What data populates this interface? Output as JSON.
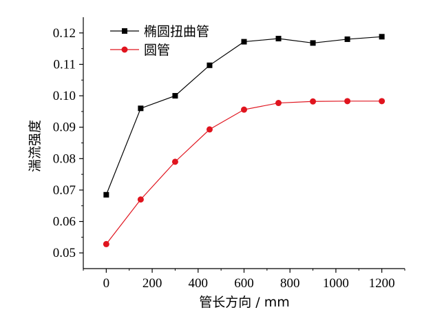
{
  "chart_data": {
    "type": "line",
    "xlabel": "管长方向 / mm",
    "ylabel": "湍流强度",
    "xlim": [
      -100,
      1300
    ],
    "ylim": [
      0.045,
      0.125
    ],
    "xticks": [
      0,
      200,
      400,
      600,
      800,
      1000,
      1200
    ],
    "yticks": [
      0.05,
      0.06,
      0.07,
      0.08,
      0.09,
      0.1,
      0.11,
      0.12
    ],
    "xtick_labels": [
      "0",
      "200",
      "400",
      "600",
      "800",
      "1000",
      "1200"
    ],
    "ytick_labels": [
      "0.05",
      "0.06",
      "0.07",
      "0.08",
      "0.09",
      "0.10",
      "0.11",
      "0.12"
    ],
    "legend_position": "top-left",
    "grid": false,
    "x": [
      0,
      150,
      300,
      450,
      600,
      750,
      900,
      1050,
      1200
    ],
    "series": [
      {
        "name": "椭圆扭曲管",
        "color": "#000000",
        "marker": "square",
        "values": [
          0.0685,
          0.096,
          0.1,
          0.1097,
          0.1172,
          0.1182,
          0.1168,
          0.118,
          0.1188
        ]
      },
      {
        "name": "圆管",
        "color": "#e0141e",
        "marker": "circle",
        "values": [
          0.0528,
          0.067,
          0.079,
          0.0893,
          0.0956,
          0.0977,
          0.0982,
          0.0983,
          0.0983
        ]
      }
    ]
  }
}
